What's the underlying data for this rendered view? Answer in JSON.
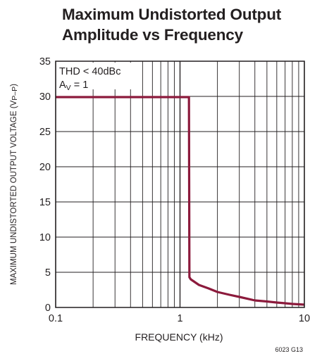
{
  "title": {
    "line1": "Maximum Undistorted Output",
    "line2": "Amplitude vs Frequency"
  },
  "figure_code": "6023 G13",
  "annotations": {
    "thd": "THD < 40dBc",
    "gain_prefix": "A",
    "gain_sub": "V",
    "gain_suffix": " = 1"
  },
  "colors": {
    "curve": "#8c1a3c",
    "grid": "#231f20",
    "text": "#231f20"
  },
  "chart_data": {
    "type": "line",
    "title": "Maximum Undistorted Output Amplitude vs Frequency",
    "xlabel": "FREQUENCY (kHz)",
    "ylabel_main": "MAXIMUM UNDISTORTED OUTPUT VOLTAGE (V",
    "ylabel_sub": "P–P",
    "ylabel_end": ")",
    "xscale": "log",
    "xlim": [
      0.1,
      10
    ],
    "ylim": [
      0,
      35
    ],
    "grid": true,
    "x_ticks": [
      "0.1",
      "1",
      "10"
    ],
    "y_ticks": [
      "0",
      "5",
      "10",
      "15",
      "20",
      "25",
      "30",
      "35"
    ],
    "series": [
      {
        "x": [
          0.1,
          1.18,
          1.19,
          1.22,
          1.42,
          1.7,
          2.0,
          2.5,
          3.0,
          4.0,
          5.0,
          6.0,
          7.0,
          8.0,
          10.0
        ],
        "y": [
          29.9,
          29.9,
          4.3,
          4.0,
          3.2,
          2.7,
          2.2,
          1.8,
          1.5,
          1.0,
          0.85,
          0.7,
          0.6,
          0.5,
          0.4
        ]
      }
    ]
  }
}
